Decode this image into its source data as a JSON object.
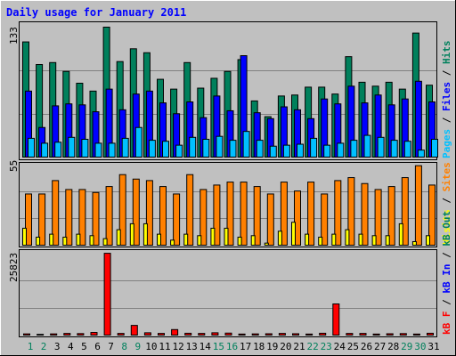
{
  "title": "Daily usage for January 2011",
  "colors": {
    "background": "#c0c0c0",
    "title": "#0000ff",
    "hits": "#00805c",
    "files": "#0000ff",
    "pages": "#00c0ff",
    "visits": "#ffff00",
    "sites": "#ff8000",
    "kbin": "#0000ff",
    "kbout": "#00805c",
    "kbf": "#ff0000",
    "weekend": "#00805c",
    "weekday": "#000000"
  },
  "chart_data": [
    {
      "type": "bar",
      "ylabel_max": "133",
      "ylim": [
        0,
        133
      ],
      "grid": true,
      "legend_parts": [
        "Pages",
        "Files",
        "Hits"
      ],
      "categories": [
        "1",
        "2",
        "3",
        "4",
        "5",
        "6",
        "7",
        "8",
        "9",
        "10",
        "11",
        "12",
        "13",
        "14",
        "15",
        "16",
        "17",
        "18",
        "19",
        "20",
        "21",
        "22",
        "23",
        "24",
        "25",
        "26",
        "27",
        "28",
        "29",
        "30",
        "31"
      ],
      "series": [
        {
          "name": "Hits",
          "color": "#00805c",
          "values": [
            118,
            95,
            97,
            88,
            76,
            68,
            133,
            98,
            111,
            107,
            80,
            70,
            97,
            71,
            81,
            88,
            100,
            58,
            42,
            63,
            64,
            72,
            72,
            65,
            103,
            77,
            73,
            77,
            70,
            127,
            74
          ]
        },
        {
          "name": "Files",
          "color": "#0000ff",
          "values": [
            68,
            31,
            53,
            55,
            54,
            47,
            70,
            49,
            65,
            68,
            56,
            45,
            57,
            41,
            63,
            48,
            104,
            46,
            40,
            52,
            49,
            40,
            60,
            55,
            73,
            56,
            64,
            54,
            60,
            78,
            57
          ]
        },
        {
          "name": "Pages",
          "color": "#00c0ff",
          "values": [
            20,
            15,
            16,
            21,
            19,
            15,
            15,
            20,
            31,
            18,
            17,
            13,
            21,
            19,
            22,
            18,
            27,
            18,
            12,
            13,
            14,
            20,
            13,
            15,
            18,
            23,
            21,
            18,
            17,
            8,
            19
          ]
        }
      ]
    },
    {
      "type": "bar",
      "ylabel_max": "55",
      "ylim": [
        0,
        55
      ],
      "grid": true,
      "legend_parts": [
        "Visits",
        "Sites"
      ],
      "categories": [
        "1",
        "2",
        "3",
        "4",
        "5",
        "6",
        "7",
        "8",
        "9",
        "10",
        "11",
        "12",
        "13",
        "14",
        "15",
        "16",
        "17",
        "18",
        "19",
        "20",
        "21",
        "22",
        "23",
        "24",
        "25",
        "26",
        "27",
        "28",
        "29",
        "30",
        "31"
      ],
      "series": [
        {
          "name": "Sites",
          "color": "#ff8000",
          "values": [
            35,
            35,
            44,
            38,
            38,
            36,
            40,
            48,
            45,
            44,
            40,
            35,
            48,
            38,
            41,
            43,
            43,
            40,
            35,
            43,
            37,
            43,
            35,
            44,
            46,
            42,
            38,
            40,
            46,
            54,
            41
          ]
        },
        {
          "name": "Visits",
          "color": "#ffff00",
          "values": [
            12,
            6,
            8,
            6,
            8,
            7,
            5,
            11,
            15,
            15,
            8,
            4,
            8,
            7,
            12,
            12,
            6,
            7,
            2,
            10,
            16,
            8,
            6,
            8,
            11,
            8,
            7,
            7,
            15,
            3,
            7
          ]
        }
      ]
    },
    {
      "type": "bar",
      "ylabel_max": "25823",
      "ylim": [
        0,
        25823
      ],
      "grid": true,
      "legend_parts": [
        "KB F",
        "KB In",
        "KB Out"
      ],
      "legend_labels": [
        "kB F",
        "kB In",
        "kB Out"
      ],
      "categories": [
        "1",
        "2",
        "3",
        "4",
        "5",
        "6",
        "7",
        "8",
        "9",
        "10",
        "11",
        "12",
        "13",
        "14",
        "15",
        "16",
        "17",
        "18",
        "19",
        "20",
        "21",
        "22",
        "23",
        "24",
        "25",
        "26",
        "27",
        "28",
        "29",
        "30",
        "31"
      ],
      "series": [
        {
          "name": "kB F",
          "color": "#ff0000",
          "values": [
            650,
            500,
            650,
            800,
            750,
            1100,
            25800,
            800,
            3300,
            1000,
            800,
            2000,
            850,
            800,
            1000,
            900,
            600,
            650,
            700,
            800,
            700,
            600,
            850,
            10000,
            800,
            800,
            600,
            700,
            750,
            600,
            850
          ]
        }
      ]
    }
  ],
  "xaxis": {
    "labels": [
      "1",
      "2",
      "3",
      "4",
      "5",
      "6",
      "7",
      "8",
      "9",
      "10",
      "11",
      "12",
      "13",
      "14",
      "15",
      "16",
      "17",
      "18",
      "19",
      "20",
      "21",
      "22",
      "23",
      "24",
      "25",
      "26",
      "27",
      "28",
      "29",
      "30",
      "31"
    ],
    "weekend_days": [
      "1",
      "2",
      "8",
      "9",
      "15",
      "16",
      "22",
      "23",
      "29",
      "30"
    ]
  }
}
